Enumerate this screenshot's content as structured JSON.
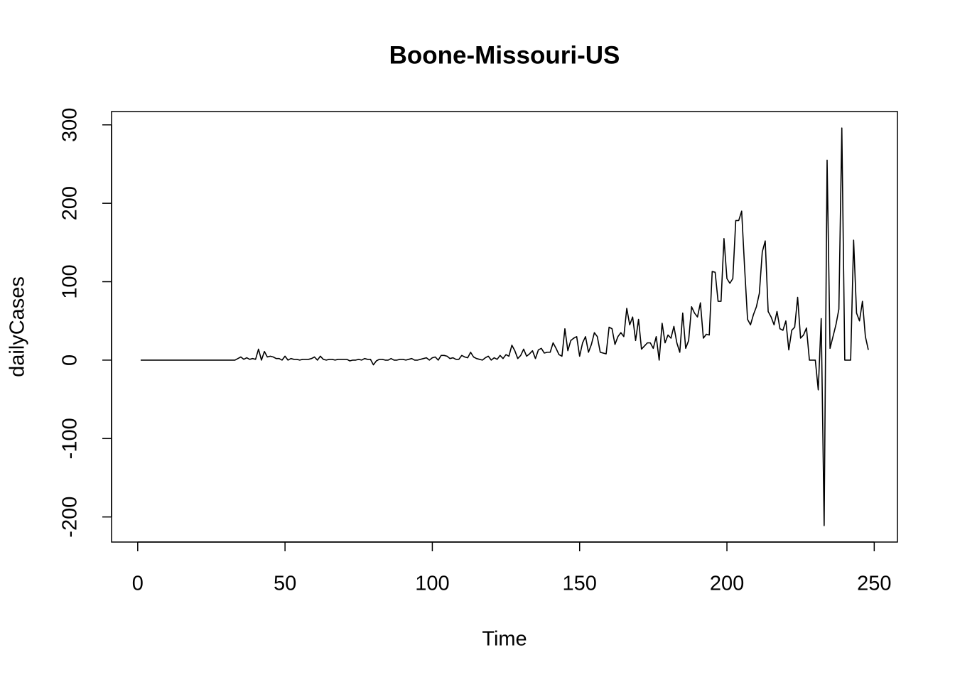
{
  "chart_data": {
    "type": "line",
    "title": "Boone-Missouri-US",
    "x_label": "Time",
    "y_label": "dailyCases",
    "color": "#000000",
    "x": [
      1,
      2,
      3,
      4,
      5,
      6,
      7,
      8,
      9,
      10,
      11,
      12,
      13,
      14,
      15,
      16,
      17,
      18,
      19,
      20,
      21,
      22,
      23,
      24,
      25,
      26,
      27,
      28,
      29,
      30,
      31,
      32,
      33,
      34,
      35,
      36,
      37,
      38,
      39,
      40,
      41,
      42,
      43,
      44,
      45,
      46,
      47,
      48,
      49,
      50,
      51,
      52,
      53,
      54,
      55,
      56,
      57,
      58,
      59,
      60,
      61,
      62,
      63,
      64,
      65,
      66,
      67,
      68,
      69,
      70,
      71,
      72,
      73,
      74,
      75,
      76,
      77,
      78,
      79,
      80,
      81,
      82,
      83,
      84,
      85,
      86,
      87,
      88,
      89,
      90,
      91,
      92,
      93,
      94,
      95,
      96,
      97,
      98,
      99,
      100,
      101,
      102,
      103,
      104,
      105,
      106,
      107,
      108,
      109,
      110,
      111,
      112,
      113,
      114,
      115,
      116,
      117,
      118,
      119,
      120,
      121,
      122,
      123,
      124,
      125,
      126,
      127,
      128,
      129,
      130,
      131,
      132,
      133,
      134,
      135,
      136,
      137,
      138,
      139,
      140,
      141,
      142,
      143,
      144,
      145,
      146,
      147,
      148,
      149,
      150,
      151,
      152,
      153,
      154,
      155,
      156,
      157,
      158,
      159,
      160,
      161,
      162,
      163,
      164,
      165,
      166,
      167,
      168,
      169,
      170,
      171,
      172,
      173,
      174,
      175,
      176,
      177,
      178,
      179,
      180,
      181,
      182,
      183,
      184,
      185,
      186,
      187,
      188,
      189,
      190,
      191,
      192,
      193,
      194,
      195,
      196,
      197,
      198,
      199,
      200,
      201,
      202,
      203,
      204,
      205,
      206,
      207,
      208,
      209,
      210,
      211,
      212,
      213,
      214,
      215,
      216,
      217,
      218,
      219,
      220,
      221,
      222,
      223,
      224,
      225,
      226,
      227,
      228,
      229,
      230,
      231,
      232,
      233,
      234,
      235,
      236,
      237,
      238,
      239,
      240,
      241,
      242,
      243,
      244,
      245,
      246,
      247,
      248
    ],
    "values": [
      0,
      0,
      0,
      0,
      0,
      0,
      0,
      0,
      0,
      0,
      0,
      0,
      0,
      0,
      0,
      0,
      0,
      0,
      0,
      0,
      0,
      0,
      0,
      0,
      0,
      0,
      0,
      0,
      0,
      0,
      0,
      0,
      0,
      2,
      4,
      1,
      3,
      1,
      2,
      1,
      14,
      0,
      11,
      4,
      5,
      4,
      2,
      2,
      0,
      5,
      0,
      2,
      1,
      1,
      0,
      1,
      1,
      1,
      2,
      4,
      0,
      5,
      1,
      0,
      1,
      1,
      0,
      1,
      1,
      1,
      1,
      -1,
      0,
      0,
      1,
      0,
      2,
      1,
      1,
      -6,
      -1,
      1,
      1,
      0,
      0,
      2,
      0,
      0,
      1,
      1,
      0,
      1,
      2,
      0,
      0,
      1,
      2,
      3,
      0,
      3,
      4,
      0,
      6,
      6,
      5,
      2,
      3,
      1,
      1,
      6,
      4,
      3,
      10,
      4,
      2,
      1,
      0,
      3,
      5,
      0,
      3,
      1,
      6,
      2,
      7,
      5,
      19,
      12,
      2,
      6,
      14,
      5,
      8,
      12,
      2,
      13,
      15,
      9,
      10,
      10,
      22,
      15,
      7,
      5,
      40,
      12,
      25,
      28,
      30,
      5,
      22,
      30,
      10,
      20,
      35,
      30,
      10,
      9,
      8,
      42,
      40,
      20,
      30,
      35,
      30,
      66,
      45,
      55,
      25,
      52,
      14,
      18,
      22,
      22,
      15,
      30,
      0,
      47,
      22,
      32,
      28,
      43,
      22,
      10,
      60,
      15,
      25,
      68,
      60,
      55,
      73,
      28,
      33,
      32,
      113,
      112,
      75,
      75,
      155,
      104,
      98,
      104,
      178,
      178,
      190,
      118,
      52,
      45,
      58,
      68,
      85,
      138,
      152,
      62,
      55,
      45,
      62,
      40,
      38,
      50,
      13,
      38,
      42,
      80,
      28,
      32,
      41,
      0,
      0,
      0,
      -38,
      53,
      -211,
      255,
      15,
      30,
      45,
      65,
      296,
      0,
      0,
      0,
      153,
      60,
      50,
      75,
      30,
      13
    ],
    "xlim": [
      -8.88,
      257.88
    ],
    "ylim": [
      -232,
      317
    ],
    "xticks": [
      0,
      50,
      100,
      150,
      200,
      250
    ],
    "yticks": [
      -200,
      -100,
      0,
      100,
      200,
      300
    ],
    "grid": false
  }
}
